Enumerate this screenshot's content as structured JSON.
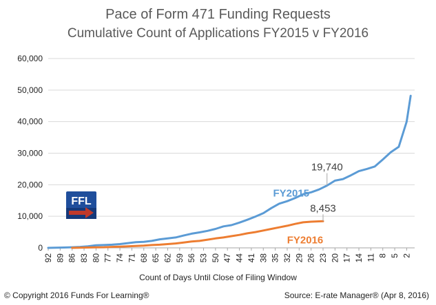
{
  "title": "Pace of Form 471 Funding Requests",
  "subtitle": "Cumulative Count of Applications FY2015 v FY2016",
  "xlabel": "Count of Days Until Close of Filing Window",
  "footer_left": "© Copyright 2016 Funds For Learning®",
  "footer_right": "Source: E-rate Manager® (Apr 8, 2016)",
  "logo_text": "FFL",
  "colors": {
    "fy2015": "#5B9BD5",
    "fy2016": "#ED7D31",
    "grid": "#D9D9D9",
    "logo_bg": "#1F4E9C",
    "logo_arrow": "#C0392B"
  },
  "chart_data": {
    "type": "line",
    "ylim": [
      0,
      60000
    ],
    "yticks": [
      "0",
      "10,000",
      "20,000",
      "30,000",
      "40,000",
      "50,000",
      "60,000"
    ],
    "ytick_values": [
      0,
      10000,
      20000,
      30000,
      40000,
      50000,
      60000
    ],
    "xlim": [
      92,
      0
    ],
    "xtick_labels": [
      "92",
      "89",
      "86",
      "83",
      "80",
      "77",
      "74",
      "71",
      "68",
      "65",
      "62",
      "59",
      "56",
      "53",
      "50",
      "47",
      "44",
      "41",
      "38",
      "35",
      "32",
      "29",
      "26",
      "23",
      "20",
      "17",
      "14",
      "11",
      "8",
      "5",
      "2"
    ],
    "series": [
      {
        "name": "FY2015",
        "label": "FY2015",
        "x": [
          92,
          88,
          86,
          84,
          82,
          80,
          78,
          76,
          74,
          72,
          70,
          68,
          66,
          64,
          62,
          60,
          58,
          56,
          54,
          52,
          50,
          48,
          46,
          44,
          42,
          40,
          38,
          36,
          34,
          32,
          30,
          28,
          26,
          24,
          22,
          20,
          18,
          16,
          14,
          12,
          10,
          8,
          6,
          4,
          2,
          1
        ],
        "y": [
          0,
          100,
          200,
          300,
          500,
          800,
          900,
          1000,
          1200,
          1500,
          1800,
          1900,
          2200,
          2700,
          3000,
          3300,
          3900,
          4500,
          4900,
          5400,
          6000,
          6800,
          7200,
          8000,
          8900,
          9900,
          11000,
          12600,
          14000,
          14800,
          15800,
          17000,
          17600,
          18500,
          19740,
          21300,
          21800,
          23000,
          24300,
          25000,
          25800,
          28000,
          30300,
          32000,
          40000,
          48200
        ]
      },
      {
        "name": "FY2016",
        "label": "FY2016",
        "x": [
          86,
          84,
          82,
          80,
          78,
          76,
          74,
          72,
          70,
          68,
          66,
          64,
          62,
          60,
          58,
          56,
          54,
          52,
          50,
          48,
          46,
          44,
          42,
          40,
          38,
          36,
          34,
          32,
          30,
          28,
          26,
          24,
          23
        ],
        "y": [
          0,
          50,
          100,
          150,
          200,
          300,
          400,
          500,
          600,
          700,
          900,
          1000,
          1200,
          1400,
          1700,
          2000,
          2200,
          2600,
          3000,
          3300,
          3700,
          4100,
          4600,
          5000,
          5500,
          6000,
          6500,
          7000,
          7600,
          8100,
          8300,
          8400,
          8453
        ]
      }
    ],
    "annotations": [
      {
        "text": "19,740",
        "x": 22,
        "y": 19740
      },
      {
        "text": "8,453",
        "x": 23,
        "y": 8453
      }
    ]
  }
}
